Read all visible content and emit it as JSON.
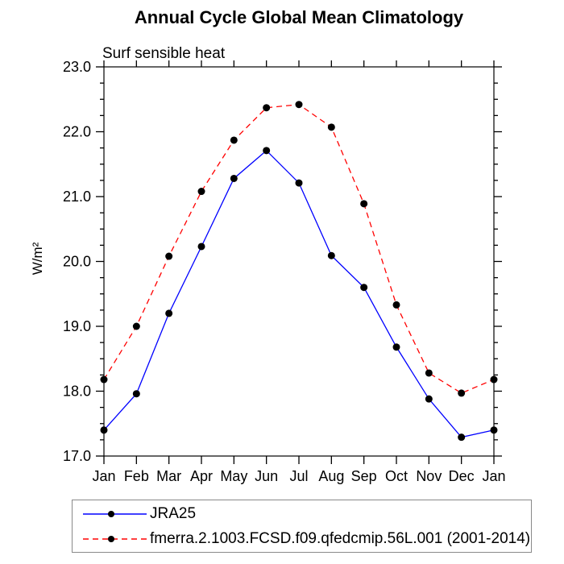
{
  "chart_data": {
    "type": "line",
    "title": "Annual Cycle Global Mean Climatology",
    "subtitle": "Surf sensible heat",
    "ylabel": "W/m²",
    "xlabel": "",
    "categories": [
      "Jan",
      "Feb",
      "Mar",
      "Apr",
      "May",
      "Jun",
      "Jul",
      "Aug",
      "Sep",
      "Oct",
      "Nov",
      "Dec",
      "Jan"
    ],
    "series": [
      {
        "name": "JRA25",
        "color": "#0000ff",
        "line_style": "solid",
        "marker": "circle",
        "marker_color": "#000000",
        "values": [
          17.4,
          17.96,
          19.2,
          20.23,
          21.28,
          21.71,
          21.21,
          20.09,
          19.6,
          18.68,
          17.88,
          17.29,
          17.4
        ]
      },
      {
        "name": "fmerra.2.1003.FCSD.f09.qfedcmip.56L.001 (2001-2014)",
        "color": "#ff0000",
        "line_style": "dashed",
        "marker": "circle",
        "marker_color": "#000000",
        "values": [
          18.18,
          19.0,
          20.08,
          21.08,
          21.87,
          22.37,
          22.42,
          22.07,
          20.89,
          19.33,
          18.28,
          17.97,
          18.18
        ]
      }
    ],
    "ylim": [
      17.0,
      23.0
    ],
    "ytick_major": 1.0,
    "ytick_minor": 0.25,
    "ytick_label_format": "one_decimal",
    "grid": false,
    "axis_color": "#000000",
    "legend_position": "bottom-left-box"
  }
}
